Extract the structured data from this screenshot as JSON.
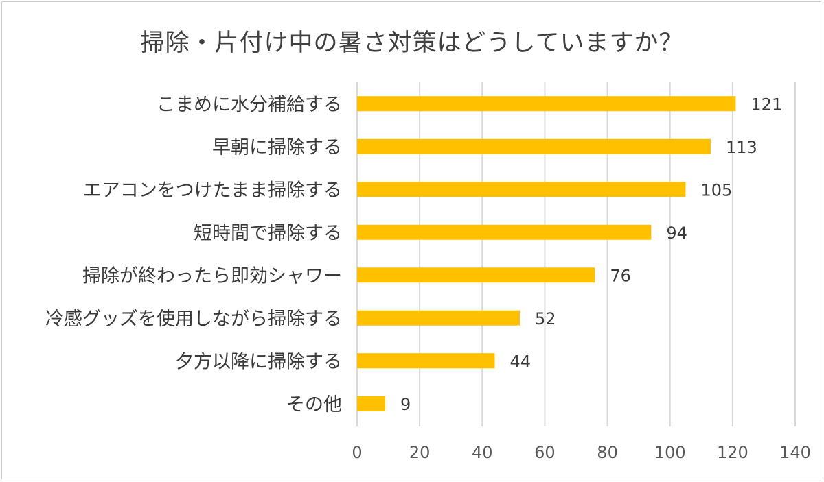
{
  "chart_data": {
    "type": "bar",
    "orientation": "horizontal",
    "title": "掃除・片付け中の暑さ対策はどうしていますか？",
    "categories": [
      "こまめに水分補給する",
      "早朝に掃除する",
      "エアコンをつけたまま掃除する",
      "短時間で掃除する",
      "掃除が終わったら即効シャワー",
      "冷感グッズを使用しながら掃除する",
      "夕方以降に掃除する",
      "その他"
    ],
    "values": [
      121,
      113,
      105,
      94,
      76,
      52,
      44,
      9
    ],
    "xlim": [
      0,
      140
    ],
    "xticks": [
      0,
      20,
      40,
      60,
      80,
      100,
      120,
      140
    ],
    "grid": "vertical",
    "bar_color": "#FFC000",
    "grid_color": "#d9d9d9",
    "data_labels": true
  }
}
